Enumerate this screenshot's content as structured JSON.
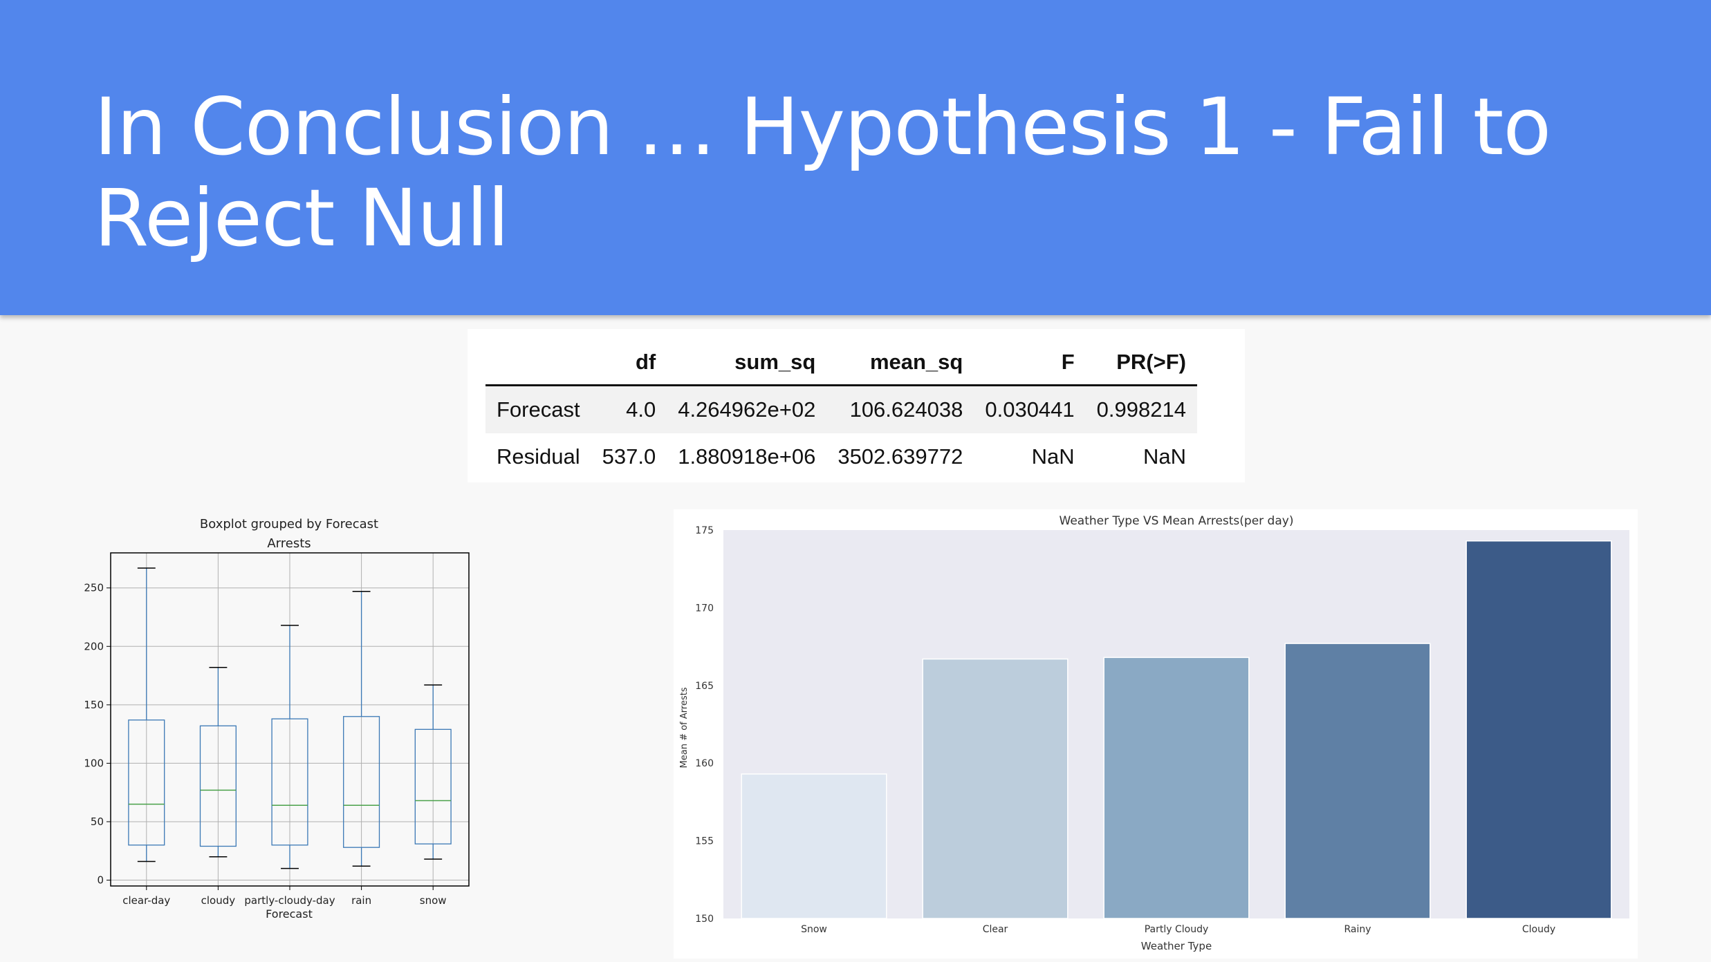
{
  "slide": {
    "title": "In Conclusion … Hypothesis 1 - Fail to Reject Null"
  },
  "anova_table": {
    "columns": [
      "",
      "df",
      "sum_sq",
      "mean_sq",
      "F",
      "PR(>F)"
    ],
    "rows": [
      [
        "Forecast",
        "4.0",
        "4.264962e+02",
        "106.624038",
        "0.030441",
        "0.998214"
      ],
      [
        "Residual",
        "537.0",
        "1.880918e+06",
        "3502.639772",
        "NaN",
        "NaN"
      ]
    ]
  },
  "chart_data": [
    {
      "type": "box",
      "title": "Boxplot grouped by Forecast",
      "subtitle": "Arrests",
      "xlabel": "Forecast",
      "ylabel": "",
      "ylim": [
        -5,
        280
      ],
      "yticks": [
        0,
        50,
        100,
        150,
        200,
        250
      ],
      "grid": true,
      "categories": [
        "clear-day",
        "cloudy",
        "partly-cloudy-day",
        "rain",
        "snow"
      ],
      "boxes": [
        {
          "whislo": 16,
          "q1": 30,
          "med": 65,
          "q3": 137,
          "whishi": 267
        },
        {
          "whislo": 20,
          "q1": 29,
          "med": 77,
          "q3": 132,
          "whishi": 182
        },
        {
          "whislo": 10,
          "q1": 30,
          "med": 64,
          "q3": 138,
          "whishi": 218
        },
        {
          "whislo": 12,
          "q1": 28,
          "med": 64,
          "q3": 140,
          "whishi": 247
        },
        {
          "whislo": 18,
          "q1": 31,
          "med": 68,
          "q3": 129,
          "whishi": 167
        }
      ],
      "colors": {
        "box": "#3a78b5",
        "median": "#4aa14a",
        "whisker_cap": "#000000",
        "grid": "#b0b0b0"
      }
    },
    {
      "type": "bar",
      "title": "Weather Type VS Mean Arrests(per day)",
      "xlabel": "Weather Type",
      "ylabel": "Mean # of Arrests",
      "ylim": [
        150,
        175
      ],
      "yticks": [
        150,
        155,
        160,
        165,
        170,
        175
      ],
      "categories": [
        "Snow",
        "Clear",
        "Partly Cloudy",
        "Rainy",
        "Cloudy"
      ],
      "values": [
        159.3,
        166.7,
        166.8,
        167.7,
        174.3
      ],
      "colors": [
        "#dfe7f1",
        "#bccddc",
        "#8aa9c4",
        "#5f80a5",
        "#3c5b88"
      ],
      "background": "#eaeaf2"
    }
  ]
}
